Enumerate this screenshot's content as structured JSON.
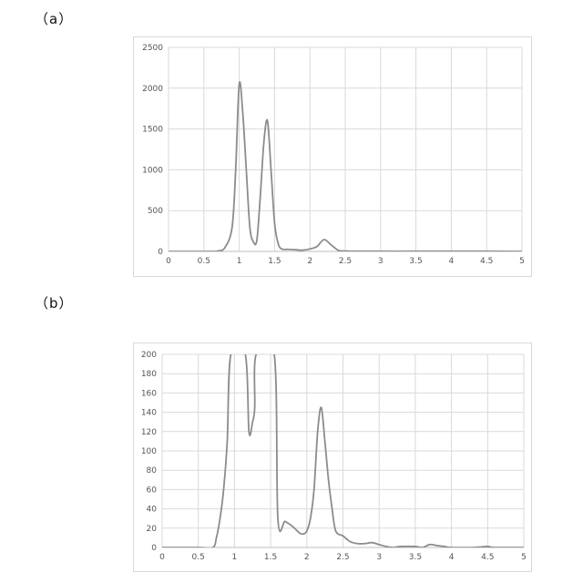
{
  "panels": [
    {
      "label": "（a）"
    },
    {
      "label": "（b）"
    }
  ],
  "chart_data": [
    {
      "type": "line",
      "title": "",
      "xlabel": "",
      "ylabel": "",
      "xlim": [
        0,
        5
      ],
      "ylim": [
        0,
        2500
      ],
      "xticks": [
        "0",
        "0.5",
        "1",
        "1.5",
        "2",
        "2.5",
        "3",
        "3.5",
        "4",
        "4.5",
        "5"
      ],
      "yticks": [
        "0",
        "500",
        "1000",
        "1500",
        "2000",
        "2500"
      ],
      "grid": true,
      "line_color": "#8c8c8c",
      "series": [
        {
          "x": [
            0,
            0.5,
            0.6,
            0.7,
            0.8,
            0.9,
            0.95,
            1.0,
            1.05,
            1.1,
            1.15,
            1.2,
            1.25,
            1.3,
            1.35,
            1.4,
            1.45,
            1.5,
            1.55,
            1.6,
            1.7,
            1.8,
            1.9,
            2.0,
            2.1,
            2.2,
            2.3,
            2.4,
            2.5,
            3.0,
            3.5,
            4.0,
            4.5,
            5.0
          ],
          "y": [
            0,
            0,
            0,
            5,
            50,
            300,
            1000,
            2050,
            1700,
            1000,
            300,
            120,
            140,
            700,
            1350,
            1600,
            1000,
            350,
            100,
            30,
            25,
            20,
            15,
            30,
            60,
            145,
            80,
            15,
            5,
            2,
            2,
            2,
            2,
            0
          ]
        }
      ]
    },
    {
      "type": "line",
      "title": "",
      "xlabel": "",
      "ylabel": "",
      "xlim": [
        0,
        5
      ],
      "ylim": [
        0,
        200
      ],
      "xticks": [
        "0",
        "0.5",
        "1",
        "1.5",
        "2",
        "2.5",
        "3",
        "3.5",
        "4",
        "4.5",
        "5"
      ],
      "yticks": [
        "0",
        "20",
        "40",
        "60",
        "80",
        "100",
        "120",
        "140",
        "160",
        "180",
        "200"
      ],
      "grid": true,
      "line_color": "#8c8c8c",
      "series": [
        {
          "x": [
            0,
            0.5,
            0.7,
            0.75,
            0.8,
            0.85,
            0.9,
            0.95,
            1.15,
            1.2,
            1.25,
            1.28,
            1.3,
            1.55,
            1.6,
            1.7,
            1.8,
            1.9,
            1.95,
            2.0,
            2.05,
            2.1,
            2.15,
            2.2,
            2.25,
            2.3,
            2.35,
            2.4,
            2.5,
            2.6,
            2.7,
            2.8,
            2.9,
            3.0,
            3.1,
            3.2,
            3.3,
            3.5,
            3.6,
            3.7,
            3.8,
            3.9,
            4.0,
            4.3,
            4.5,
            4.6,
            5.0
          ],
          "y": [
            0,
            0,
            0,
            10,
            30,
            60,
            110,
            200,
            200,
            120,
            130,
            145,
            200,
            200,
            30,
            27,
            22,
            15,
            14,
            17,
            30,
            60,
            120,
            145,
            110,
            70,
            40,
            17,
            12,
            6,
            4,
            4,
            5,
            3,
            1,
            0,
            1,
            1,
            0,
            3,
            2,
            1,
            0,
            0,
            1,
            0,
            0
          ]
        }
      ]
    }
  ]
}
